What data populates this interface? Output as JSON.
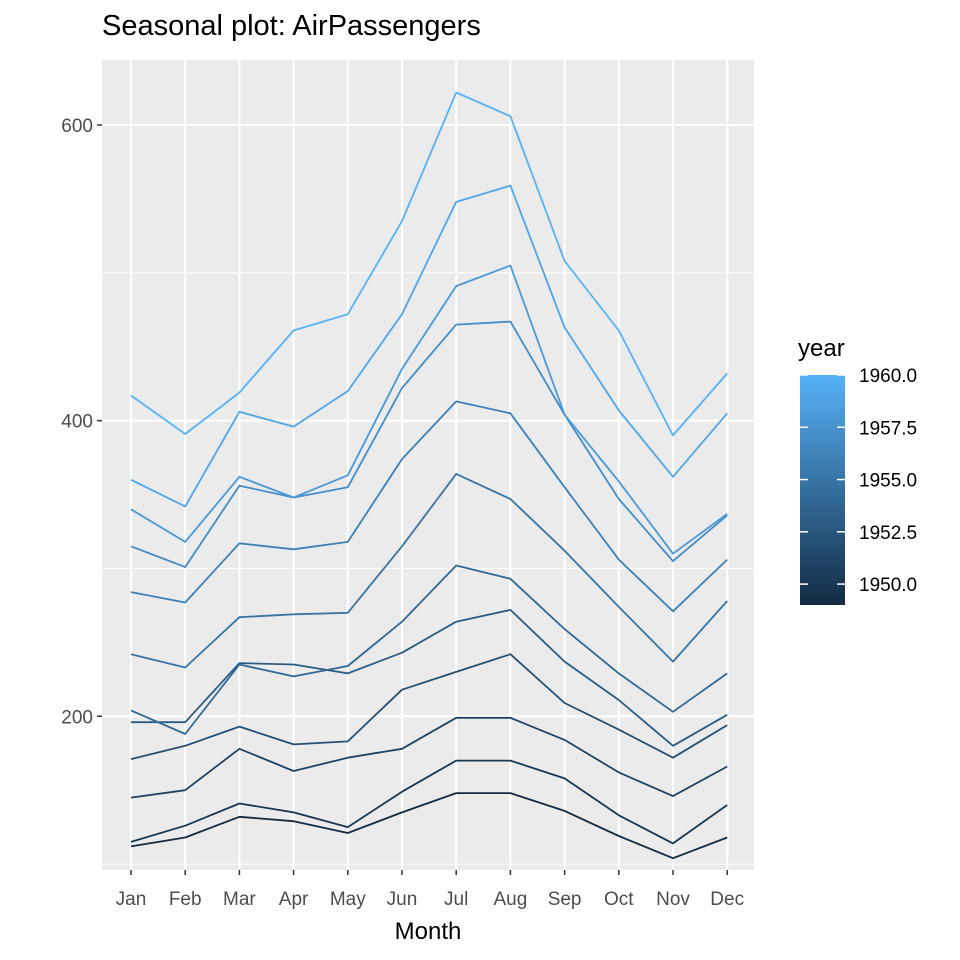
{
  "chart_data": {
    "type": "line",
    "title": "Seasonal plot: AirPassengers",
    "xlabel": "Month",
    "ylabel": "",
    "categories": [
      "Jan",
      "Feb",
      "Mar",
      "Apr",
      "May",
      "Jun",
      "Jul",
      "Aug",
      "Sep",
      "Oct",
      "Nov",
      "Dec"
    ],
    "ylim": [
      96,
      644
    ],
    "yticks": [
      200,
      400,
      600
    ],
    "grid": true,
    "legend": {
      "title": "year",
      "placement": "right",
      "type": "colorbar",
      "ticks": [
        "1960.0",
        "1957.5",
        "1955.0",
        "1952.5",
        "1950.0"
      ],
      "tick_values": [
        1960,
        1957.5,
        1955,
        1952.5,
        1950
      ],
      "range": [
        1949,
        1960
      ],
      "color_low": "#132b43",
      "color_high": "#56b1f7"
    },
    "series": [
      {
        "year": 1949,
        "values": [
          112,
          118,
          132,
          129,
          121,
          135,
          148,
          148,
          136,
          119,
          104,
          118
        ]
      },
      {
        "year": 1950,
        "values": [
          115,
          126,
          141,
          135,
          125,
          149,
          170,
          170,
          158,
          133,
          114,
          140
        ]
      },
      {
        "year": 1951,
        "values": [
          145,
          150,
          178,
          163,
          172,
          178,
          199,
          199,
          184,
          162,
          146,
          166
        ]
      },
      {
        "year": 1952,
        "values": [
          171,
          180,
          193,
          181,
          183,
          218,
          230,
          242,
          209,
          191,
          172,
          194
        ]
      },
      {
        "year": 1953,
        "values": [
          196,
          196,
          236,
          235,
          229,
          243,
          264,
          272,
          237,
          211,
          180,
          201
        ]
      },
      {
        "year": 1954,
        "values": [
          204,
          188,
          235,
          227,
          234,
          264,
          302,
          293,
          259,
          229,
          203,
          229
        ]
      },
      {
        "year": 1955,
        "values": [
          242,
          233,
          267,
          269,
          270,
          315,
          364,
          347,
          312,
          274,
          237,
          278
        ]
      },
      {
        "year": 1956,
        "values": [
          284,
          277,
          317,
          313,
          318,
          374,
          413,
          405,
          355,
          306,
          271,
          306
        ]
      },
      {
        "year": 1957,
        "values": [
          315,
          301,
          356,
          348,
          355,
          422,
          465,
          467,
          404,
          347,
          305,
          336
        ]
      },
      {
        "year": 1958,
        "values": [
          340,
          318,
          362,
          348,
          363,
          435,
          491,
          505,
          404,
          359,
          310,
          337
        ]
      },
      {
        "year": 1959,
        "values": [
          360,
          342,
          406,
          396,
          420,
          472,
          548,
          559,
          463,
          407,
          362,
          405
        ]
      },
      {
        "year": 1960,
        "values": [
          417,
          391,
          419,
          461,
          472,
          535,
          622,
          606,
          508,
          461,
          390,
          432
        ]
      }
    ]
  }
}
